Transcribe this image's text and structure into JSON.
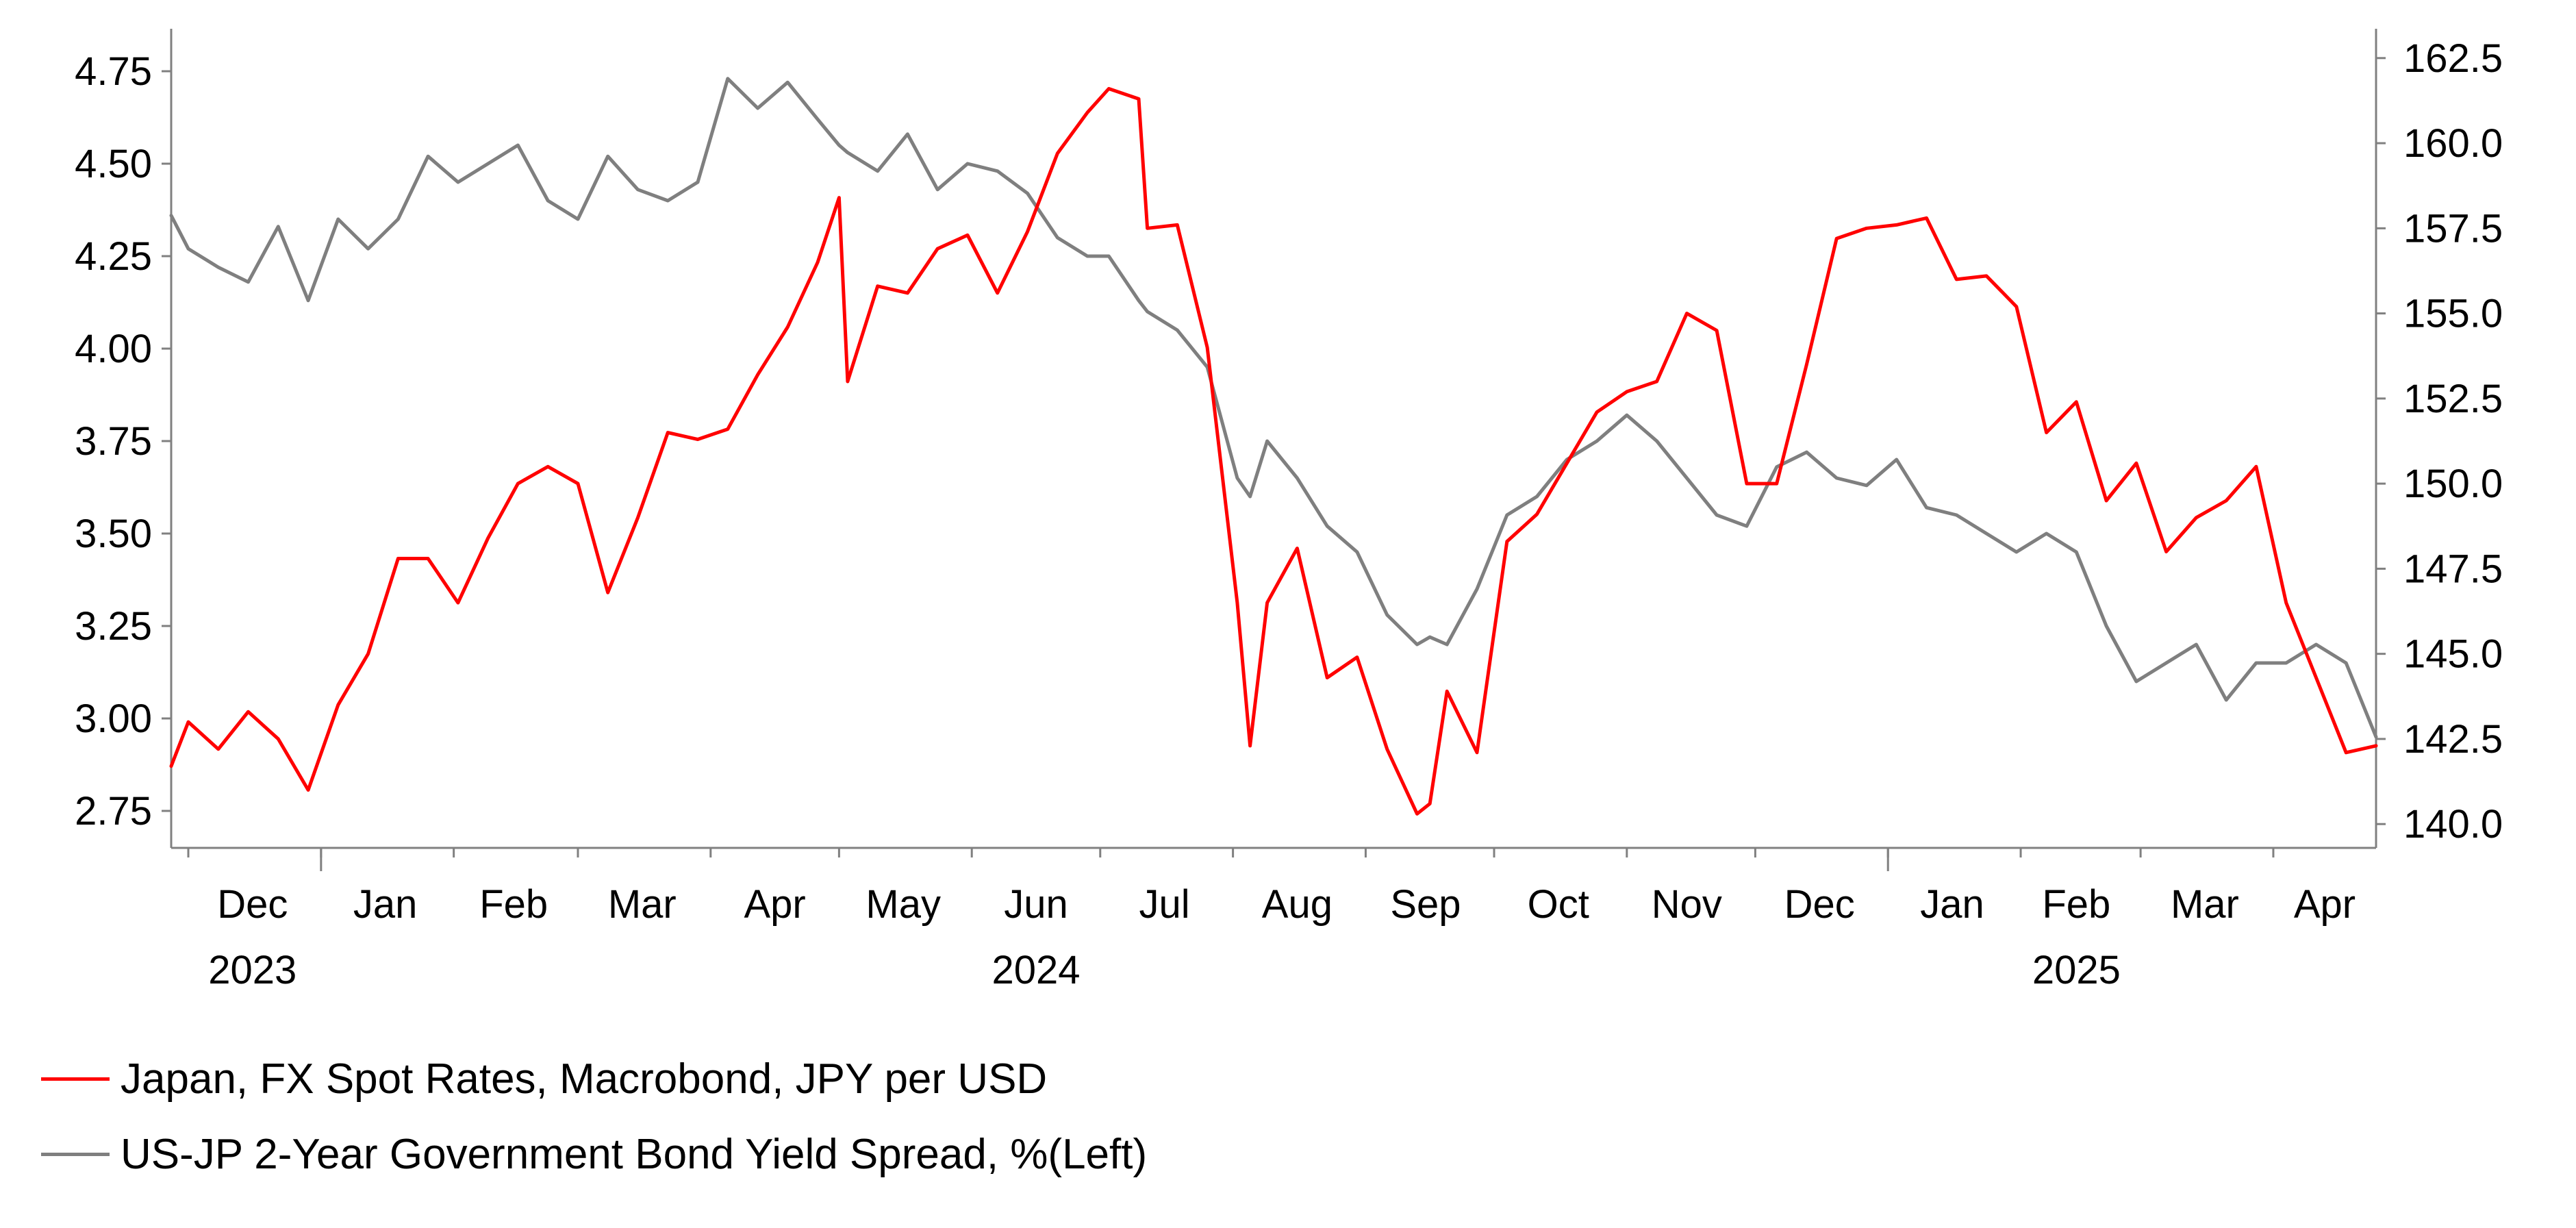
{
  "chart_data": {
    "type": "line",
    "title": "",
    "x_range": [
      "2023-11-27",
      "2025-04-25"
    ],
    "left_axis": {
      "range": [
        2.65,
        4.85
      ],
      "ticks": [
        "2.75",
        "3.00",
        "3.25",
        "3.50",
        "3.75",
        "4.00",
        "4.25",
        "4.50",
        "4.75"
      ]
    },
    "right_axis": {
      "range": [
        139.3,
        163.2
      ],
      "ticks": [
        "140.0",
        "142.5",
        "145.0",
        "147.5",
        "150.0",
        "152.5",
        "155.0",
        "157.5",
        "160.0",
        "162.5"
      ]
    },
    "x_months": [
      {
        "label": "Dec",
        "date": "2023-12-16"
      },
      {
        "label": "Jan",
        "date": "2024-01-16"
      },
      {
        "label": "Feb",
        "date": "2024-02-15"
      },
      {
        "label": "Mar",
        "date": "2024-03-16"
      },
      {
        "label": "Apr",
        "date": "2024-04-16"
      },
      {
        "label": "May",
        "date": "2024-05-16"
      },
      {
        "label": "Jun",
        "date": "2024-06-16"
      },
      {
        "label": "Jul",
        "date": "2024-07-16"
      },
      {
        "label": "Aug",
        "date": "2024-08-16"
      },
      {
        "label": "Sep",
        "date": "2024-09-15"
      },
      {
        "label": "Oct",
        "date": "2024-10-16"
      },
      {
        "label": "Nov",
        "date": "2024-11-15"
      },
      {
        "label": "Dec",
        "date": "2024-12-16"
      },
      {
        "label": "Jan",
        "date": "2025-01-16"
      },
      {
        "label": "Feb",
        "date": "2025-02-14"
      },
      {
        "label": "Mar",
        "date": "2025-03-16"
      },
      {
        "label": "Apr",
        "date": "2025-04-13"
      }
    ],
    "x_month_boundaries": [
      "2023-12-01",
      "2024-01-01",
      "2024-02-01",
      "2024-03-01",
      "2024-04-01",
      "2024-05-01",
      "2024-06-01",
      "2024-07-01",
      "2024-08-01",
      "2024-09-01",
      "2024-10-01",
      "2024-11-01",
      "2024-12-01",
      "2025-01-01",
      "2025-02-01",
      "2025-03-01",
      "2025-04-01"
    ],
    "x_years": [
      {
        "label": "2023",
        "date": "2023-12-16"
      },
      {
        "label": "2024",
        "date": "2024-06-16"
      },
      {
        "label": "2025",
        "date": "2025-02-14"
      }
    ],
    "x_year_boundaries": [
      "2024-01-01",
      "2025-01-01"
    ],
    "series": [
      {
        "name": "Japan, FX Spot Rates, Macrobond, JPY per USD",
        "axis": "right",
        "color": "#ff0000",
        "x": [
          "2023-11-27",
          "2023-12-01",
          "2023-12-08",
          "2023-12-15",
          "2023-12-22",
          "2023-12-29",
          "2024-01-05",
          "2024-01-12",
          "2024-01-19",
          "2024-01-26",
          "2024-02-02",
          "2024-02-09",
          "2024-02-16",
          "2024-02-23",
          "2024-03-01",
          "2024-03-08",
          "2024-03-15",
          "2024-03-22",
          "2024-03-29",
          "2024-04-05",
          "2024-04-12",
          "2024-04-19",
          "2024-04-26",
          "2024-05-01",
          "2024-05-03",
          "2024-05-10",
          "2024-05-17",
          "2024-05-24",
          "2024-05-31",
          "2024-06-07",
          "2024-06-14",
          "2024-06-21",
          "2024-06-28",
          "2024-07-03",
          "2024-07-10",
          "2024-07-12",
          "2024-07-19",
          "2024-07-26",
          "2024-08-02",
          "2024-08-05",
          "2024-08-09",
          "2024-08-16",
          "2024-08-23",
          "2024-08-30",
          "2024-09-06",
          "2024-09-13",
          "2024-09-16",
          "2024-09-20",
          "2024-09-27",
          "2024-10-04",
          "2024-10-11",
          "2024-10-18",
          "2024-10-25",
          "2024-11-01",
          "2024-11-08",
          "2024-11-15",
          "2024-11-22",
          "2024-11-29",
          "2024-12-06",
          "2024-12-13",
          "2024-12-20",
          "2024-12-27",
          "2025-01-03",
          "2025-01-10",
          "2025-01-17",
          "2025-01-24",
          "2025-01-31",
          "2025-02-07",
          "2025-02-14",
          "2025-02-21",
          "2025-02-28",
          "2025-03-07",
          "2025-03-14",
          "2025-03-21",
          "2025-03-28",
          "2025-04-04",
          "2025-04-11",
          "2025-04-18",
          "2025-04-25"
        ],
        "values": [
          141.7,
          143.0,
          142.2,
          143.3,
          142.5,
          141.0,
          143.5,
          145.0,
          147.8,
          147.8,
          146.5,
          148.4,
          150.0,
          150.5,
          150.0,
          146.8,
          149.0,
          151.5,
          151.3,
          151.6,
          153.2,
          154.6,
          156.5,
          158.4,
          153.0,
          155.8,
          155.6,
          156.9,
          157.3,
          155.6,
          157.4,
          159.7,
          160.9,
          161.6,
          161.3,
          157.5,
          157.6,
          154.0,
          146.5,
          142.3,
          146.5,
          148.1,
          144.3,
          144.9,
          142.2,
          140.3,
          140.6,
          143.9,
          142.1,
          148.3,
          149.1,
          150.6,
          152.1,
          152.7,
          153.0,
          155.0,
          154.5,
          150.0,
          150.0,
          153.5,
          157.2,
          157.5,
          157.6,
          157.8,
          156.0,
          156.1,
          155.2,
          151.5,
          152.4,
          149.5,
          150.6,
          148.0,
          149.0,
          149.5,
          150.5,
          146.5,
          144.3,
          142.1,
          142.3
        ]
      },
      {
        "name": "US-JP 2-Year Government Bond Yield Spread, %(Left)",
        "axis": "left",
        "color": "#7f7f7f",
        "x": [
          "2023-11-27",
          "2023-12-01",
          "2023-12-08",
          "2023-12-15",
          "2023-12-22",
          "2023-12-29",
          "2024-01-05",
          "2024-01-12",
          "2024-01-19",
          "2024-01-26",
          "2024-02-02",
          "2024-02-09",
          "2024-02-16",
          "2024-02-23",
          "2024-03-01",
          "2024-03-08",
          "2024-03-15",
          "2024-03-22",
          "2024-03-29",
          "2024-04-05",
          "2024-04-12",
          "2024-04-19",
          "2024-04-26",
          "2024-05-01",
          "2024-05-03",
          "2024-05-10",
          "2024-05-17",
          "2024-05-24",
          "2024-05-31",
          "2024-06-07",
          "2024-06-14",
          "2024-06-21",
          "2024-06-28",
          "2024-07-03",
          "2024-07-10",
          "2024-07-12",
          "2024-07-19",
          "2024-07-26",
          "2024-08-02",
          "2024-08-05",
          "2024-08-09",
          "2024-08-16",
          "2024-08-23",
          "2024-08-30",
          "2024-09-06",
          "2024-09-13",
          "2024-09-16",
          "2024-09-20",
          "2024-09-27",
          "2024-10-04",
          "2024-10-11",
          "2024-10-18",
          "2024-10-25",
          "2024-11-01",
          "2024-11-08",
          "2024-11-15",
          "2024-11-22",
          "2024-11-29",
          "2024-12-06",
          "2024-12-13",
          "2024-12-20",
          "2024-12-27",
          "2025-01-03",
          "2025-01-10",
          "2025-01-17",
          "2025-01-24",
          "2025-01-31",
          "2025-02-07",
          "2025-02-14",
          "2025-02-21",
          "2025-02-28",
          "2025-03-07",
          "2025-03-14",
          "2025-03-21",
          "2025-03-28",
          "2025-04-04",
          "2025-04-11",
          "2025-04-18",
          "2025-04-25"
        ],
        "values": [
          4.36,
          4.27,
          4.22,
          4.18,
          4.33,
          4.13,
          4.35,
          4.27,
          4.35,
          4.52,
          4.45,
          4.5,
          4.55,
          4.4,
          4.35,
          4.52,
          4.43,
          4.4,
          4.45,
          4.73,
          4.65,
          4.72,
          4.62,
          4.55,
          4.53,
          4.48,
          4.58,
          4.43,
          4.5,
          4.48,
          4.42,
          4.3,
          4.25,
          4.25,
          4.13,
          4.1,
          4.05,
          3.95,
          3.65,
          3.6,
          3.75,
          3.65,
          3.52,
          3.45,
          3.28,
          3.2,
          3.22,
          3.2,
          3.35,
          3.55,
          3.6,
          3.7,
          3.75,
          3.82,
          3.75,
          3.65,
          3.55,
          3.52,
          3.68,
          3.72,
          3.65,
          3.63,
          3.7,
          3.57,
          3.55,
          3.5,
          3.45,
          3.5,
          3.45,
          3.25,
          3.1,
          3.15,
          3.2,
          3.05,
          3.15,
          3.15,
          3.2,
          3.15,
          2.95
        ]
      }
    ]
  }
}
